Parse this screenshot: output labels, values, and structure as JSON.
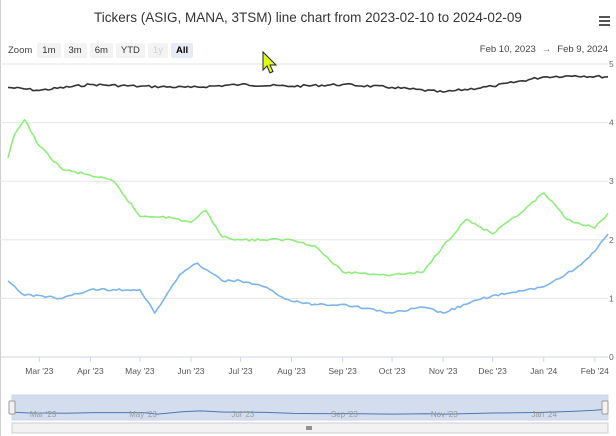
{
  "title": "Tickers (ASIG, MANA, 3TSM) line chart from 2023-02-10 to 2024-02-09",
  "zoom": {
    "label": "Zoom",
    "buttons": [
      "1m",
      "3m",
      "6m",
      "YTD",
      "1y",
      "All"
    ],
    "disabled": "1y",
    "active": "All"
  },
  "range": {
    "from": "Feb 10, 2023",
    "arrow": "→",
    "to": "Feb 9, 2024"
  },
  "icons": {
    "menu": "hamburger-menu-icon",
    "cursor": "mouse-pointer-icon"
  },
  "colors": {
    "ASIG": "#333333",
    "MANA": "#90ed7d",
    "3TSM": "#7cb5ec"
  },
  "chart_data": {
    "type": "line",
    "x_ticks": [
      "Mar '23",
      "Apr '23",
      "May '23",
      "Jun '23",
      "Jul '23",
      "Aug '23",
      "Sep '23",
      "Oct '23",
      "Nov '23",
      "Dec '23",
      "Jan '24",
      "Feb '24"
    ],
    "y_ticks": [
      "0",
      "1",
      "2",
      "3",
      "4",
      "5"
    ],
    "ylim": [
      0,
      5
    ],
    "xlim": [
      "2023-02-10",
      "2024-02-09"
    ],
    "grid": true,
    "navigator_ticks": [
      "Mar '23",
      "May '23",
      "Jul '23",
      "Sep '23",
      "Nov '23",
      "Jan '24"
    ],
    "series": [
      {
        "name": "ASIG",
        "points": [
          [
            "2023-02-10",
            4.6
          ],
          [
            "2023-03-01",
            4.55
          ],
          [
            "2023-04-01",
            4.65
          ],
          [
            "2023-05-01",
            4.62
          ],
          [
            "2023-06-01",
            4.6
          ],
          [
            "2023-07-01",
            4.65
          ],
          [
            "2023-08-01",
            4.62
          ],
          [
            "2023-09-01",
            4.65
          ],
          [
            "2023-10-01",
            4.6
          ],
          [
            "2023-11-01",
            4.52
          ],
          [
            "2023-12-01",
            4.62
          ],
          [
            "2024-01-01",
            4.78
          ],
          [
            "2024-01-20",
            4.8
          ],
          [
            "2024-02-09",
            4.78
          ]
        ]
      },
      {
        "name": "MANA",
        "points": [
          [
            "2023-02-10",
            3.4
          ],
          [
            "2023-02-14",
            3.8
          ],
          [
            "2023-02-20",
            4.05
          ],
          [
            "2023-03-01",
            3.6
          ],
          [
            "2023-03-15",
            3.2
          ],
          [
            "2023-04-01",
            3.1
          ],
          [
            "2023-04-15",
            3.0
          ],
          [
            "2023-05-01",
            2.4
          ],
          [
            "2023-05-15",
            2.4
          ],
          [
            "2023-06-01",
            2.3
          ],
          [
            "2023-06-10",
            2.5
          ],
          [
            "2023-06-20",
            2.05
          ],
          [
            "2023-07-01",
            2.0
          ],
          [
            "2023-07-15",
            2.0
          ],
          [
            "2023-08-01",
            2.0
          ],
          [
            "2023-08-15",
            1.9
          ],
          [
            "2023-09-01",
            1.45
          ],
          [
            "2023-10-01",
            1.4
          ],
          [
            "2023-10-20",
            1.45
          ],
          [
            "2023-11-01",
            1.9
          ],
          [
            "2023-11-15",
            2.35
          ],
          [
            "2023-12-01",
            2.1
          ],
          [
            "2023-12-20",
            2.5
          ],
          [
            "2024-01-01",
            2.8
          ],
          [
            "2024-01-15",
            2.35
          ],
          [
            "2024-02-01",
            2.2
          ],
          [
            "2024-02-09",
            2.45
          ]
        ]
      },
      {
        "name": "3TSM",
        "points": [
          [
            "2023-02-10",
            1.3
          ],
          [
            "2023-02-20",
            1.05
          ],
          [
            "2023-03-01",
            1.05
          ],
          [
            "2023-03-15",
            1.0
          ],
          [
            "2023-04-01",
            1.15
          ],
          [
            "2023-04-15",
            1.15
          ],
          [
            "2023-05-01",
            1.15
          ],
          [
            "2023-05-10",
            0.75
          ],
          [
            "2023-05-25",
            1.4
          ],
          [
            "2023-06-05",
            1.6
          ],
          [
            "2023-06-20",
            1.3
          ],
          [
            "2023-07-01",
            1.3
          ],
          [
            "2023-07-15",
            1.2
          ],
          [
            "2023-08-01",
            0.95
          ],
          [
            "2023-08-15",
            0.9
          ],
          [
            "2023-09-01",
            0.9
          ],
          [
            "2023-10-01",
            0.75
          ],
          [
            "2023-10-20",
            0.85
          ],
          [
            "2023-11-01",
            0.75
          ],
          [
            "2023-11-15",
            0.9
          ],
          [
            "2023-12-01",
            1.05
          ],
          [
            "2023-12-15",
            1.1
          ],
          [
            "2024-01-01",
            1.2
          ],
          [
            "2024-01-20",
            1.5
          ],
          [
            "2024-02-01",
            1.8
          ],
          [
            "2024-02-09",
            2.1
          ]
        ]
      }
    ]
  }
}
